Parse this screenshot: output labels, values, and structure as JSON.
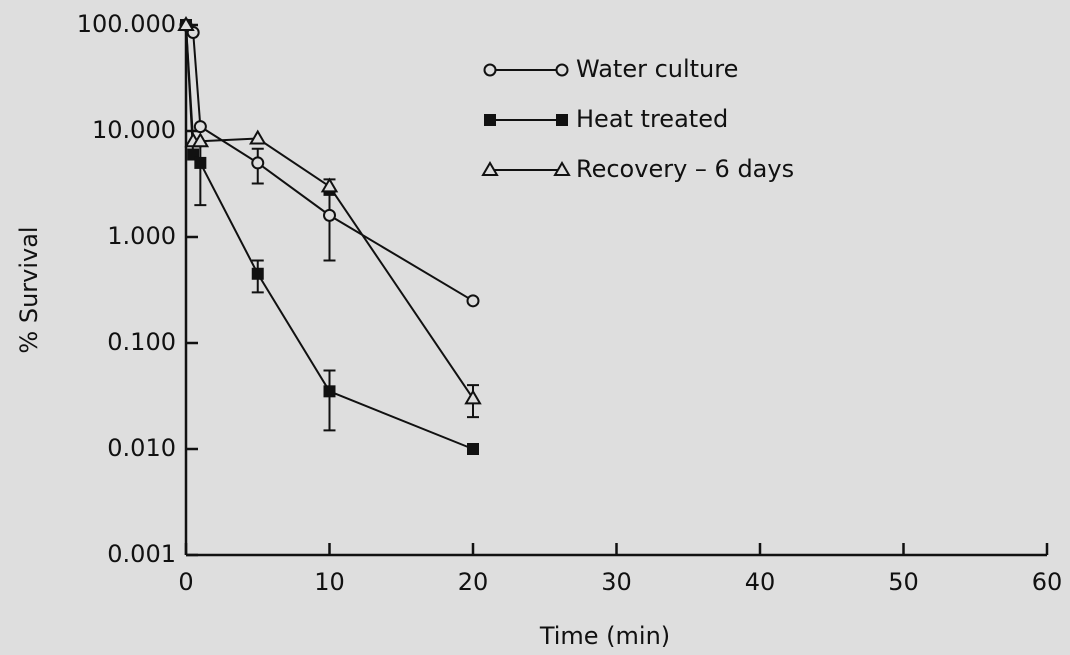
{
  "chart_data": {
    "type": "line",
    "x_label": "Time (min)",
    "y_label": "% Survival",
    "ylog": true,
    "xlim": [
      0,
      60
    ],
    "xticks": [
      0,
      10,
      20,
      30,
      40,
      50,
      60
    ],
    "ylim": [
      0.001,
      100
    ],
    "yticks": [
      {
        "value": 0.001,
        "label": "0.001"
      },
      {
        "value": 0.01,
        "label": "0.010"
      },
      {
        "value": 0.1,
        "label": "0.100"
      },
      {
        "value": 1,
        "label": "1.000"
      },
      {
        "value": 10,
        "label": "10.000"
      },
      {
        "value": 100,
        "label": "100.000"
      }
    ],
    "legend": "top",
    "series": [
      {
        "name": "Water culture",
        "color": "#111111",
        "marker": "circle",
        "x": [
          0,
          0.5,
          1,
          5,
          10,
          20
        ],
        "values": [
          100,
          85,
          11,
          5,
          1.6,
          0.25
        ],
        "errors": [
          null,
          null,
          null,
          1.8,
          1.0,
          null
        ]
      },
      {
        "name": "Heat treated",
        "color": "#111111",
        "marker": "square",
        "x": [
          0,
          0.5,
          1,
          5,
          10,
          20
        ],
        "values": [
          100,
          6,
          5,
          0.45,
          0.035,
          0.01
        ],
        "errors": [
          null,
          null,
          3,
          0.15,
          0.02,
          null
        ]
      },
      {
        "name": "Recovery – 6 days",
        "color": "#111111",
        "marker": "triangle",
        "x": [
          0,
          0.5,
          1,
          5,
          10,
          20
        ],
        "values": [
          100,
          8,
          8,
          8.5,
          3,
          0.03
        ],
        "errors": [
          null,
          null,
          null,
          null,
          0.5,
          0.01
        ]
      }
    ]
  }
}
